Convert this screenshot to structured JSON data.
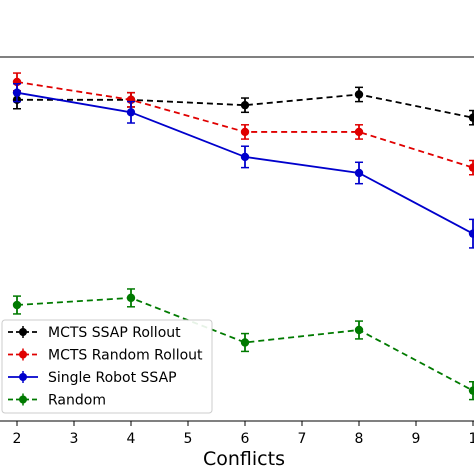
{
  "chart_data": {
    "type": "line",
    "xlabel": "Conflicts",
    "ylabel": "",
    "title": "",
    "x_ticks": [
      "2",
      "3",
      "4",
      "5",
      "6",
      "7",
      "8",
      "9",
      "1"
    ],
    "xlim": [
      2,
      10
    ],
    "ylim": [
      -0.02,
      1.0
    ],
    "grid": false,
    "legend_placement": "lower-left",
    "series": [
      {
        "name": "MCTS SSAP Rollout",
        "color": "#000000",
        "linestyle": "dashed",
        "x": [
          2,
          4,
          6,
          8,
          10
        ],
        "y": [
          0.88,
          0.88,
          0.865,
          0.895,
          0.83
        ],
        "err": [
          0.025,
          0.02,
          0.02,
          0.02,
          0.02
        ]
      },
      {
        "name": "MCTS Random Rollout",
        "color": "#e00000",
        "linestyle": "dashed",
        "x": [
          2,
          4,
          6,
          8,
          10
        ],
        "y": [
          0.93,
          0.88,
          0.79,
          0.79,
          0.69
        ],
        "err": [
          0.025,
          0.02,
          0.02,
          0.02,
          0.02
        ]
      },
      {
        "name": "Single Robot SSAP",
        "color": "#0000cc",
        "linestyle": "solid",
        "x": [
          2,
          4,
          6,
          8,
          10
        ],
        "y": [
          0.9,
          0.845,
          0.72,
          0.675,
          0.505
        ],
        "err": [
          0.025,
          0.03,
          0.03,
          0.03,
          0.04
        ]
      },
      {
        "name": "Random",
        "color": "#007a00",
        "linestyle": "dashed",
        "x": [
          2,
          4,
          6,
          8,
          10
        ],
        "y": [
          0.305,
          0.325,
          0.2,
          0.235,
          0.065
        ],
        "err": [
          0.025,
          0.025,
          0.025,
          0.025,
          0.025
        ]
      }
    ]
  }
}
